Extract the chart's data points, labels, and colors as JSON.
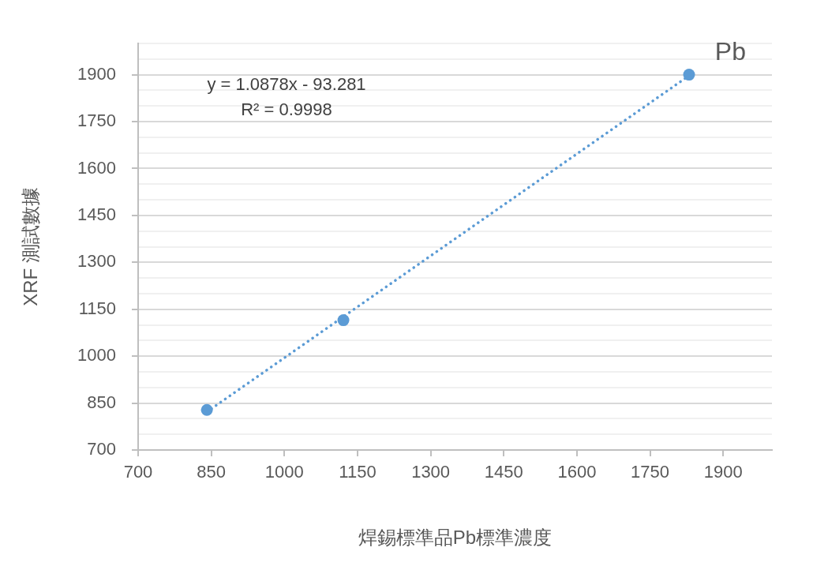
{
  "chart_data": {
    "type": "scatter",
    "title": "Pb",
    "xlabel": "焊錫標準品Pb標準濃度",
    "ylabel": "XRF 測試數據",
    "annotations": [
      "y = 1.0878x - 93.281",
      "R² = 0.9998"
    ],
    "xlim": [
      700,
      2000
    ],
    "ylim": [
      700,
      2000
    ],
    "xticks": [
      700,
      850,
      1000,
      1150,
      1300,
      1450,
      1600,
      1750,
      1900
    ],
    "yticks": [
      700,
      {
        "value": 750,
        "label": null
      },
      {
        "value": 800,
        "label": null
      },
      850,
      {
        "value": 900,
        "label": null
      },
      {
        "value": 950,
        "label": null
      },
      1000,
      {
        "value": 1050,
        "label": null
      },
      {
        "value": 1100,
        "label": null
      },
      1150,
      {
        "value": 1200,
        "label": null
      },
      {
        "value": 1250,
        "label": null
      },
      1300,
      {
        "value": 1350,
        "label": null
      },
      {
        "value": 1400,
        "label": null
      },
      1450,
      {
        "value": 1500,
        "label": null
      },
      {
        "value": 1550,
        "label": null
      },
      1600,
      {
        "value": 1650,
        "label": null
      },
      {
        "value": 1700,
        "label": null
      },
      1750,
      {
        "value": 1800,
        "label": null
      },
      {
        "value": 1850,
        "label": null
      },
      1900,
      {
        "value": 1950,
        "label": null
      },
      {
        "value": 2000,
        "label": null
      }
    ],
    "grid": "y",
    "legend": false,
    "series": [
      {
        "color": "#5b9bd5",
        "marker": "circle",
        "x": [
          841,
          1121,
          1830
        ],
        "values": [
          828,
          1115,
          1900
        ]
      },
      {
        "type": "line",
        "color": "#5b9bd5",
        "marker": "none",
        "line_style": "dotted",
        "x": [
          841,
          1830
        ],
        "values": [
          822,
          1897
        ]
      }
    ]
  }
}
